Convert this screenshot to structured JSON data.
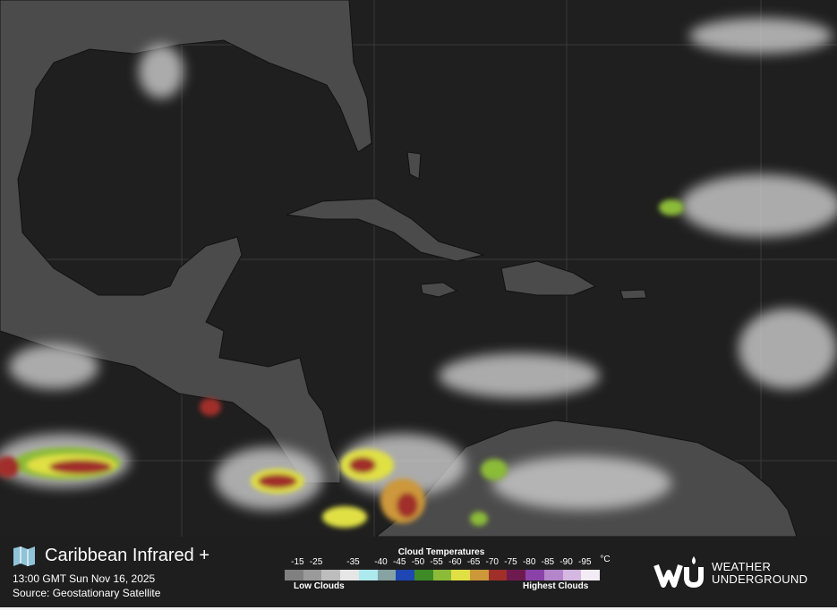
{
  "header": {
    "title": "Caribbean Infrared +",
    "timestamp": "13:00 GMT Sun Nov 16, 2025",
    "source": "Source: Geostationary Satellite",
    "icon": "map-icon"
  },
  "legend": {
    "title": "Cloud Temperatures",
    "unit": "°C",
    "labels": [
      "-15",
      "-25",
      "-35",
      "-40",
      "-45",
      "-50",
      "-55",
      "-60",
      "-65",
      "-70",
      "-75",
      "-80",
      "-85",
      "-90",
      "-95"
    ],
    "colors": [
      "#808080",
      "#9a9a9a",
      "#bdbdbd",
      "#e6e6e6",
      "#aee9ee",
      "#86a2a2",
      "#1f47b3",
      "#3d8a26",
      "#8cbb38",
      "#e0e044",
      "#cd983a",
      "#a02f2a",
      "#6f1a4f",
      "#8a42a8",
      "#b585cc",
      "#d4b8e2",
      "#f3ecf6"
    ],
    "low_label": "Low Clouds",
    "high_label": "Highest Clouds"
  },
  "brand": {
    "line1": "WEATHER",
    "line2": "UNDERGROUND",
    "logo": "wu-logo"
  },
  "map": {
    "ocean_color": "#1f1f1f",
    "land_color": "#4b4b4b"
  }
}
